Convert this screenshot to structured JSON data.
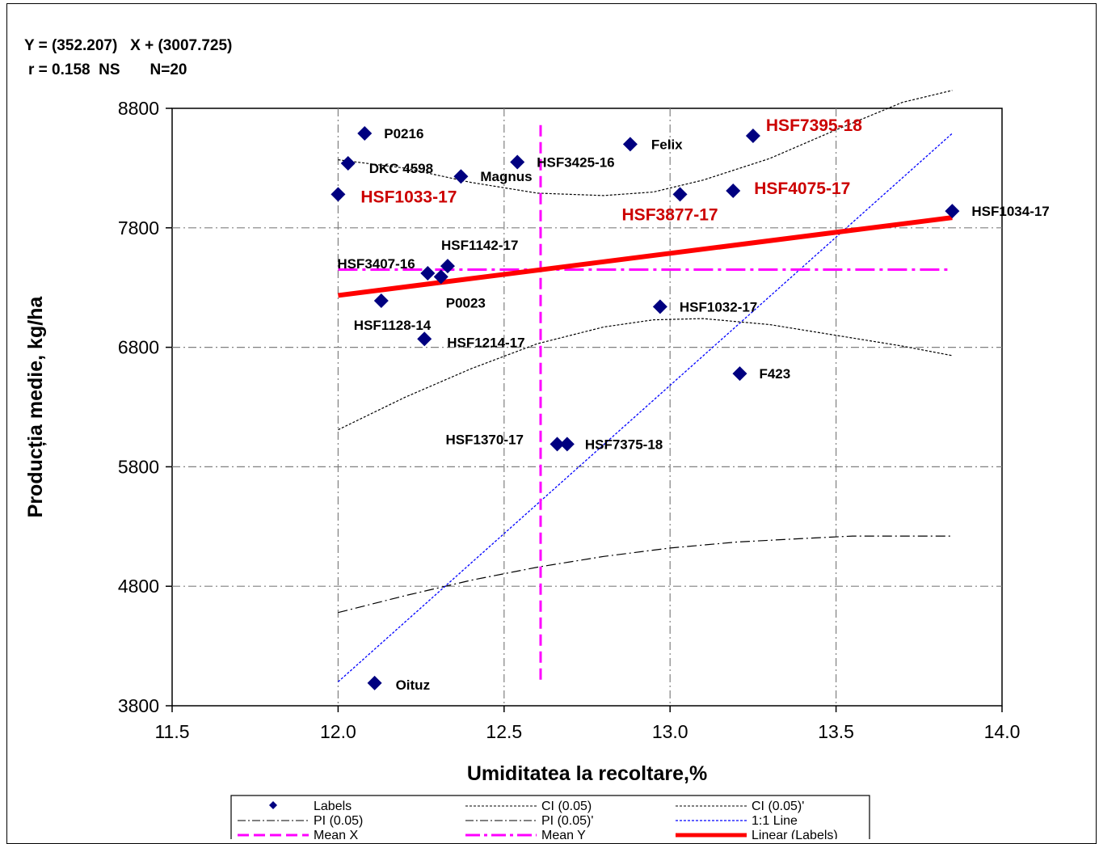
{
  "header": {
    "equation": "Y = (352.207)   X + (3007.725)",
    "stats": "r = 0.158  NS       N=20"
  },
  "colors": {
    "point": "#000080",
    "red_label": "#cc0000",
    "regression": "#ff0000",
    "mean": "#ff00ff",
    "one_to_one": "#0000ff",
    "ci": "#000000",
    "grid": "#808080"
  },
  "chart_data": {
    "type": "scatter",
    "title": "",
    "xlabel": "Umiditatea la recoltare,%",
    "ylabel": "Producția medie, kg/ha",
    "xlim": [
      11.5,
      14.0
    ],
    "ylim": [
      3800,
      8800
    ],
    "xticks": [
      "11.5",
      "12.0",
      "12.5",
      "13.0",
      "13.5",
      "14.0"
    ],
    "yticks": [
      "3800",
      "4800",
      "5800",
      "6800",
      "7800",
      "8800"
    ],
    "grid": true,
    "legend_placement": "bottom",
    "points": [
      {
        "label": "P0216",
        "x": 12.08,
        "y": 8590,
        "highlight": false
      },
      {
        "label": "DKC 4598",
        "x": 12.03,
        "y": 8340,
        "highlight": false
      },
      {
        "label": "HSF1033-17",
        "x": 12.0,
        "y": 8080,
        "highlight": true
      },
      {
        "label": "HSF3425-16",
        "x": 12.54,
        "y": 8350,
        "highlight": false
      },
      {
        "label": "Magnus",
        "x": 12.37,
        "y": 8230,
        "highlight": false
      },
      {
        "label": "Felix",
        "x": 12.88,
        "y": 8500,
        "highlight": false
      },
      {
        "label": "HSF7395-18",
        "x": 13.25,
        "y": 8570,
        "highlight": true
      },
      {
        "label": "HSF3877-17",
        "x": 13.03,
        "y": 8080,
        "highlight": true
      },
      {
        "label": "HSF4075-17",
        "x": 13.19,
        "y": 8110,
        "highlight": true
      },
      {
        "label": "HSF1034-17",
        "x": 13.85,
        "y": 7940,
        "highlight": false
      },
      {
        "label": "HSF1142-17",
        "x": 12.33,
        "y": 7480,
        "highlight": false
      },
      {
        "label": "HSF3407-16",
        "x": 12.27,
        "y": 7420,
        "highlight": false
      },
      {
        "label": "P0023",
        "x": 12.31,
        "y": 7390,
        "highlight": false
      },
      {
        "label": "HSF1128-14",
        "x": 12.13,
        "y": 7190,
        "highlight": false
      },
      {
        "label": "HSF1032-17",
        "x": 12.97,
        "y": 7140,
        "highlight": false
      },
      {
        "label": "HSF1214-17",
        "x": 12.26,
        "y": 6870,
        "highlight": false
      },
      {
        "label": "F423",
        "x": 13.21,
        "y": 6580,
        "highlight": false
      },
      {
        "label": "HSF1370-17",
        "x": 12.66,
        "y": 5990,
        "highlight": false
      },
      {
        "label": "HSF7375-18",
        "x": 12.69,
        "y": 5990,
        "highlight": false
      },
      {
        "label": "Oituz",
        "x": 12.11,
        "y": 3990,
        "highlight": false
      }
    ],
    "regression": {
      "slope": 352.207,
      "intercept": 3007.725,
      "x_range": [
        12.0,
        13.85
      ]
    },
    "mean_x": 12.61,
    "mean_y": 7450,
    "one_to_one": {
      "x": [
        12.0,
        13.85
      ],
      "y": [
        4000,
        8590
      ]
    },
    "ci_upper": {
      "x": [
        12.0,
        12.2,
        12.4,
        12.6,
        12.8,
        12.95,
        13.1,
        13.3,
        13.5,
        13.7,
        13.85
      ],
      "y": [
        8370,
        8300,
        8180,
        8090,
        8070,
        8100,
        8200,
        8380,
        8620,
        8850,
        8950
      ]
    },
    "ci_lower": {
      "x": [
        12.0,
        12.2,
        12.4,
        12.6,
        12.8,
        12.95,
        13.1,
        13.3,
        13.5,
        13.7,
        13.85
      ],
      "y": [
        6110,
        6380,
        6620,
        6830,
        6970,
        7030,
        7040,
        6990,
        6900,
        6810,
        6730
      ]
    },
    "pi_lower": {
      "x": [
        12.0,
        12.2,
        12.4,
        12.6,
        12.8,
        13.0,
        13.2,
        13.4,
        13.55,
        13.7,
        13.85
      ],
      "y": [
        4580,
        4720,
        4850,
        4960,
        5050,
        5120,
        5170,
        5200,
        5220,
        5220,
        5220
      ]
    },
    "legend": [
      {
        "label": "Labels",
        "style": "marker"
      },
      {
        "label": "CI (0.05)",
        "style": "dot"
      },
      {
        "label": "CI (0.05)'",
        "style": "dot"
      },
      {
        "label": "PI (0.05)",
        "style": "dashdot"
      },
      {
        "label": "PI (0.05)'",
        "style": "dashdot"
      },
      {
        "label": "1:1 Line",
        "style": "blue-dot"
      },
      {
        "label": "Mean X",
        "style": "magenta-dash"
      },
      {
        "label": "Mean Y",
        "style": "magenta-dashdot"
      },
      {
        "label": "Linear (Labels)",
        "style": "red-thick"
      }
    ]
  }
}
